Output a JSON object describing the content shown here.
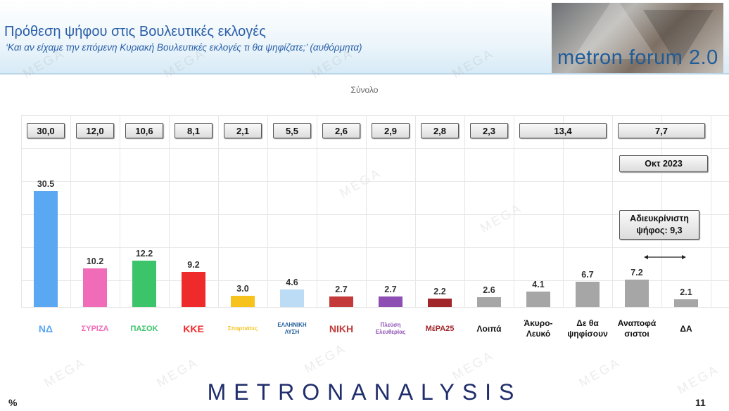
{
  "header": {
    "title": "Πρόθεση ψήφου στις Βουλευτικές εκλογές",
    "subtitle": "‘Και αν είχαμε την επόμενη Κυριακή Βουλευτικές εκλογές τι θα ψηφίζατε;’ (αυθόρμητα)",
    "logo_text": "metron forum 2.0"
  },
  "footer": {
    "brand": "METRONANALYSIS",
    "unit": "%",
    "page": "11"
  },
  "watermark": "MEGA",
  "chart_data": {
    "type": "bar",
    "title": "Σύνολο",
    "xlabel": "",
    "ylabel": "%",
    "ylim": [
      0,
      40
    ],
    "grid": true,
    "categories": [
      "ΝΔ",
      "ΣΥΡΙΖΑ",
      "ΠΑΣΟΚ",
      "ΚΚΕ",
      "Σπαρτιάτες",
      "Ελληνική Λύση",
      "ΝΙΚΗ",
      "Πλεύση Ελευθερίας",
      "ΜέΡΑ25",
      "Λοιπά",
      "Άκυρο-Λευκό",
      "Δε θα ψηφίσουν",
      "Αναποφάσιστοι",
      "ΔΑ"
    ],
    "series": [
      {
        "values": [
          30.5,
          10.2,
          12.2,
          9.2,
          3.0,
          4.6,
          2.7,
          2.7,
          2.2,
          2.6,
          4.1,
          6.7,
          7.2,
          2.1
        ],
        "labels": [
          "30.5",
          "10.2",
          "12.2",
          "9.2",
          "3.0",
          "4.6",
          "2.7",
          "2.7",
          "2.2",
          "2.6",
          "4.1",
          "6.7",
          "7.2",
          "2.1"
        ]
      }
    ],
    "colors": [
      "#5aa7f2",
      "#f06cb8",
      "#3cc46b",
      "#ef2a2a",
      "#f7c21b",
      "#bcdcf5",
      "#c43a3a",
      "#8e4fb5",
      "#a0262a",
      "#a6a6a6",
      "#a6a6a6",
      "#a6a6a6",
      "#a6a6a6",
      "#a6a6a6"
    ],
    "category_labels": [
      {
        "text": "",
        "logo": "ΝΔ"
      },
      {
        "text": "",
        "logo": "ΣΥΡΙΖΑ"
      },
      {
        "text": "",
        "logo": "ΠΑΣΟΚ"
      },
      {
        "text": "",
        "logo": "ΚΚΕ"
      },
      {
        "text": "",
        "logo": "Σπαρτιάτες"
      },
      {
        "text": "",
        "logo": "ΕΛΛΗΝΙΚΗ ΛΥΣΗ"
      },
      {
        "text": "",
        "logo": "ΝΙΚΗ"
      },
      {
        "text": "",
        "logo": "Πλεύση Ελευθερίας"
      },
      {
        "text": "",
        "logo": "ΜέΡΑ25"
      },
      {
        "text": "Λοιπά",
        "logo": ""
      },
      {
        "text": "Άκυρο-\nΛευκό",
        "logo": ""
      },
      {
        "text": "Δε θα\nψηφίσουν",
        "logo": ""
      },
      {
        "text": "Αναποφά\nσιστοι",
        "logo": ""
      },
      {
        "text": "ΔΑ",
        "logo": ""
      }
    ],
    "previous_wave": {
      "label": "Οκτ 2023",
      "values": [
        "30,0",
        "12,0",
        "10,6",
        "8,1",
        "2,1",
        "5,5",
        "2,6",
        "2,9",
        "2,8",
        "2,3",
        "13,4",
        "7,7"
      ],
      "spans": [
        1,
        1,
        1,
        1,
        1,
        1,
        1,
        1,
        1,
        1,
        2,
        2
      ]
    },
    "annotation": "Αδιευκρίνιστη\nψήφος: 9,3"
  }
}
